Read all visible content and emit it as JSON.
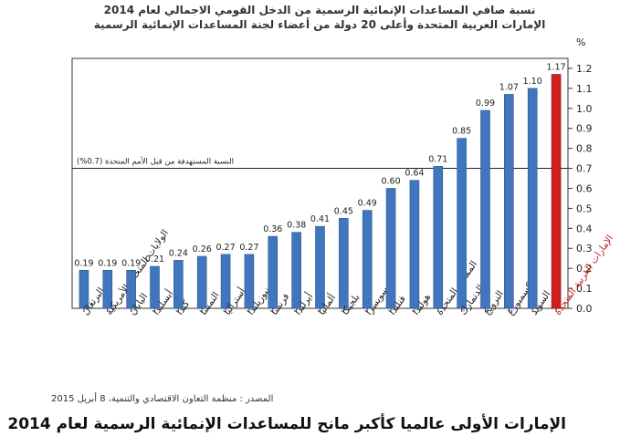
{
  "titles": {
    "line1": "نسبة صافي المساعدات الإنمائية الرسمية من الدخل القومي الاجمالي لعام 2014",
    "line2": "الإمارات العربية المتحدة وأعلى 20 دولة من أعضاء لجنة المساعدات الإنمائية الرسمية"
  },
  "source": "المصدر : منظمة التعاون الاقتصادي والتنمية، 8 أبريل 2015",
  "headline": "الإمارات الأولى عالميا كأكبر مانح للمساعدات الإنمائية الرسمية لعام 2014",
  "chart_data": {
    "type": "bar",
    "title": "نسبة صافي المساعدات الإنمائية الرسمية من الدخل القومي الاجمالي لعام 2014",
    "subtitle": "الإمارات العربية المتحدة وأعلى 20 دولة من أعضاء لجنة المساعدات الإنمائية الرسمية",
    "categories": [
      "البرتغال",
      "الولايات المتحدة الأمريكية",
      "اليابان",
      "أيسلندا",
      "كندا",
      "النمسا",
      "أستراليا",
      "نيوزيلندا",
      "فرنسا",
      "أيرلندا",
      "ألمانيا",
      "بلجيكا",
      "سويسرا",
      "فنلندا",
      "هولندا",
      "المملكة المتحدة",
      "الدنمارك",
      "النرويج",
      "لوكسمبورغ",
      "السويد",
      "الإمارات العربية المتحدة"
    ],
    "values": [
      0.19,
      0.19,
      0.19,
      0.21,
      0.24,
      0.26,
      0.27,
      0.27,
      0.36,
      0.38,
      0.41,
      0.45,
      0.49,
      0.6,
      0.64,
      0.71,
      0.85,
      0.99,
      1.07,
      1.1,
      1.17
    ],
    "value_labels": [
      "0.19",
      "0.19",
      "0.19",
      "0.21",
      "0.24",
      "0.26",
      "0.27",
      "0.27",
      "0.36",
      "0.38",
      "0.41",
      "0.45",
      "0.49",
      "0.60",
      "0.64",
      "0.71",
      "0.85",
      "0.99",
      "1.07",
      "1.10",
      "1.17"
    ],
    "highlight_index": 20,
    "ylim": [
      0,
      1.25
    ],
    "yticks": [
      "0.0",
      "0.1",
      "0.2",
      "0.3",
      "0.4",
      "0.5",
      "0.6",
      "0.7",
      "0.8",
      "0.9",
      "1.0",
      "1.1",
      "1.2"
    ],
    "y_unit": "%",
    "y_axis_side": "right",
    "reference_line": {
      "value": 0.7,
      "label": "النسبة المستهدفة من قبل الأمم المتحدة (0.7%)"
    },
    "grid": false,
    "colors": {
      "bar": "#3f76bd",
      "highlight": "#d21e1e",
      "highlight_label": "#c0201f",
      "text": "#222222"
    }
  }
}
